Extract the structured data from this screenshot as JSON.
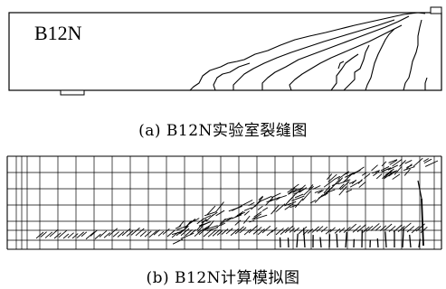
{
  "panel_a": {
    "beam_label": "B12N",
    "caption": "(a) B12N实验室裂缝图"
  },
  "panel_b": {
    "caption": "(b) B12N计算模拟图"
  }
}
